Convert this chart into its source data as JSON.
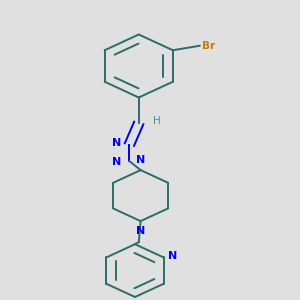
{
  "bg_color": "#e0e0e0",
  "bond_color": "#2d6b6b",
  "n_color": "#0000ee",
  "br_color": "#cc7700",
  "h_color": "#4a9090",
  "bond_width": 1.4,
  "dbo": 0.013,
  "figsize": [
    3.0,
    3.0
  ],
  "dpi": 100,
  "xlim": [
    0.1,
    0.9
  ],
  "ylim": [
    0.02,
    1.02
  ]
}
